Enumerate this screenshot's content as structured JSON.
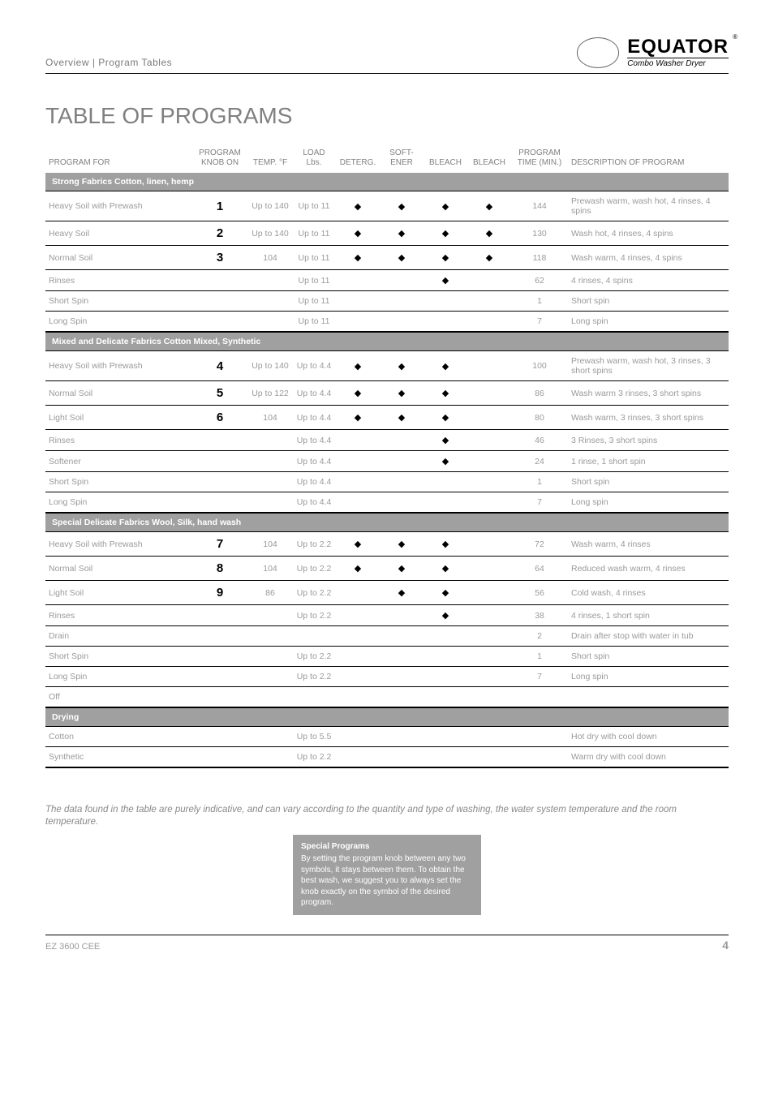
{
  "header": {
    "breadcrumb": "Overview | Program Tables",
    "logo_title": "EQUATOR",
    "logo_sub": "Combo Washer Dryer"
  },
  "page_title": "TABLE OF PROGRAMS",
  "columns": {
    "program_type": "PROGRAM FOR",
    "knob": "PROGRAM KNOB ON",
    "temp": "TEMP. °F",
    "load": "LOAD Lbs.",
    "deterg": "DETERG.",
    "soft": "SOFT-\nENER",
    "bleach": "BLEACH",
    "time": "PROGRAM TIME (MIN.)",
    "desc": "DESCRIPTION OF PROGRAM"
  },
  "sections": [
    {
      "title": "Strong Fabrics Cotton, linen, hemp",
      "rows": [
        {
          "program": "Heavy Soil with Prewash",
          "knob": "1",
          "temp": "Up to 140",
          "load": "Up to 11",
          "d": true,
          "s": true,
          "b": true,
          "bl": true,
          "time": "144",
          "desc": "Prewash warm, wash hot, 4 rinses, 4 spins"
        },
        {
          "program": "Heavy Soil",
          "knob": "2",
          "temp": "Up to 140",
          "load": "Up to 11",
          "d": true,
          "s": true,
          "b": true,
          "bl": true,
          "time": "130",
          "desc": "Wash hot, 4 rinses, 4 spins"
        },
        {
          "program": "Normal Soil",
          "knob": "3",
          "temp": "104",
          "load": "Up to 11",
          "d": true,
          "s": true,
          "b": true,
          "bl": true,
          "time": "118",
          "desc": "Wash warm, 4 rinses, 4 spins"
        },
        {
          "program": "Rinses",
          "knob": "",
          "temp": "",
          "load": "Up to 11",
          "d": false,
          "s": false,
          "b": true,
          "bl": false,
          "time": "62",
          "desc": "4 rinses, 4 spins"
        },
        {
          "program": "Short Spin",
          "knob": "",
          "temp": "",
          "load": "Up to 11",
          "d": false,
          "s": false,
          "b": false,
          "bl": false,
          "time": "1",
          "desc": "Short spin"
        },
        {
          "program": "Long Spin",
          "knob": "",
          "temp": "",
          "load": "Up to 11",
          "d": false,
          "s": false,
          "b": false,
          "bl": false,
          "time": "7",
          "desc": "Long spin",
          "heavy": true
        }
      ]
    },
    {
      "title": "Mixed and Delicate Fabrics Cotton Mixed, Synthetic",
      "rows": [
        {
          "program": "Heavy Soil with Prewash",
          "knob": "4",
          "temp": "Up to 140",
          "load": "Up to 4.4",
          "d": true,
          "s": true,
          "b": true,
          "bl": false,
          "time": "100",
          "desc": "Prewash warm, wash hot, 3 rinses, 3 short spins"
        },
        {
          "program": "Normal Soil",
          "knob": "5",
          "temp": "Up to 122",
          "load": "Up to 4.4",
          "d": true,
          "s": true,
          "b": true,
          "bl": false,
          "time": "86",
          "desc": "Wash warm 3 rinses, 3 short spins"
        },
        {
          "program": "Light Soil",
          "knob": "6",
          "temp": "104",
          "load": "Up to 4.4",
          "d": true,
          "s": true,
          "b": true,
          "bl": false,
          "time": "80",
          "desc": "Wash warm, 3 rinses, 3 short spins"
        },
        {
          "program": "Rinses",
          "knob": "",
          "temp": "",
          "load": "Up to 4.4",
          "d": false,
          "s": false,
          "b": true,
          "bl": false,
          "time": "46",
          "desc": "3 Rinses, 3 short spins"
        },
        {
          "program": "Softener",
          "knob": "",
          "temp": "",
          "load": "Up to 4.4",
          "d": false,
          "s": false,
          "b": true,
          "bl": false,
          "time": "24",
          "desc": "1 rinse, 1 short spin"
        },
        {
          "program": "Short Spin",
          "knob": "",
          "temp": "",
          "load": "Up to 4.4",
          "d": false,
          "s": false,
          "b": false,
          "bl": false,
          "time": "1",
          "desc": "Short spin"
        },
        {
          "program": "Long Spin",
          "knob": "",
          "temp": "",
          "load": "Up to 4.4",
          "d": false,
          "s": false,
          "b": false,
          "bl": false,
          "time": "7",
          "desc": "Long spin",
          "heavy": true
        }
      ]
    },
    {
      "title": "Special Delicate Fabrics Wool, Silk, hand wash",
      "rows": [
        {
          "program": "Heavy Soil with Prewash",
          "knob": "7",
          "temp": "104",
          "load": "Up to 2.2",
          "d": true,
          "s": true,
          "b": true,
          "bl": false,
          "time": "72",
          "desc": "Wash warm, 4 rinses"
        },
        {
          "program": "Normal Soil",
          "knob": "8",
          "temp": "104",
          "load": "Up to 2.2",
          "d": true,
          "s": true,
          "b": true,
          "bl": false,
          "time": "64",
          "desc": "Reduced wash warm, 4 rinses"
        },
        {
          "program": "Light Soil",
          "knob": "9",
          "temp": "86",
          "load": "Up to 2.2",
          "d": false,
          "s": true,
          "b": true,
          "bl": false,
          "time": "56",
          "desc": "Cold wash, 4 rinses"
        },
        {
          "program": "Rinses",
          "knob": "",
          "temp": "",
          "load": "Up to 2.2",
          "d": false,
          "s": false,
          "b": true,
          "bl": false,
          "time": "38",
          "desc": "4 rinses, 1 short spin"
        },
        {
          "program": "Drain",
          "knob": "",
          "temp": "",
          "load": "",
          "d": false,
          "s": false,
          "b": false,
          "bl": false,
          "time": "2",
          "desc": "Drain after stop with water in tub"
        },
        {
          "program": "Short Spin",
          "knob": "",
          "temp": "",
          "load": "Up to 2.2",
          "d": false,
          "s": false,
          "b": false,
          "bl": false,
          "time": "1",
          "desc": "Short spin"
        },
        {
          "program": "Long Spin",
          "knob": "",
          "temp": "",
          "load": "Up to 2.2",
          "d": false,
          "s": false,
          "b": false,
          "bl": false,
          "time": "7",
          "desc": "Long spin"
        },
        {
          "program": "Off",
          "knob": "",
          "temp": "",
          "load": "",
          "d": false,
          "s": false,
          "b": false,
          "bl": false,
          "time": "",
          "desc": "",
          "heavy": true
        }
      ]
    },
    {
      "title": "Drying",
      "rows": [
        {
          "program": "Cotton",
          "knob": "",
          "temp": "",
          "load": "Up to 5.5",
          "d": false,
          "s": false,
          "b": false,
          "bl": false,
          "time": "",
          "desc": "Hot dry with cool down"
        },
        {
          "program": "Synthetic",
          "knob": "",
          "temp": "",
          "load": "Up to 2.2",
          "d": false,
          "s": false,
          "b": false,
          "bl": false,
          "time": "",
          "desc": "Warm dry with cool down",
          "heavy": true
        }
      ]
    }
  ],
  "footnote": "The data found in the table are purely indicative, and can vary according to the quantity and type of washing, the water system temperature and the room temperature.",
  "specialbox": {
    "title": "Special Programs",
    "body": "By setting the program knob between any two symbols, it stays between them. To obtain the best wash, we suggest you to always set the knob exactly on the symbol of the desired program."
  },
  "footer": {
    "model": "EZ 3600 CEE",
    "page": "4"
  }
}
